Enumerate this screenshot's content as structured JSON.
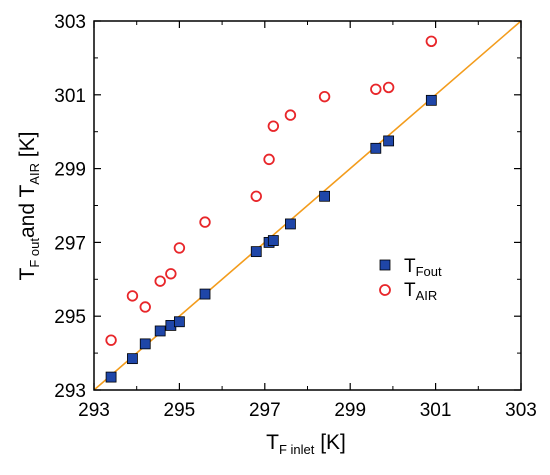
{
  "chart_data": {
    "type": "scatter",
    "xlabel": {
      "main": "T",
      "sub": "F inlet",
      "unit": " [K]"
    },
    "ylabel": {
      "main1": "T",
      "sub1": "F out",
      "mid": "and T",
      "sub2": "AIR",
      "unit": " [K]"
    },
    "xlim": [
      293,
      303
    ],
    "ylim": [
      293,
      303
    ],
    "x_ticks": [
      "293",
      "295",
      "297",
      "299",
      "301",
      "303"
    ],
    "y_ticks": [
      "293",
      "295",
      "297",
      "299",
      "301",
      "303"
    ],
    "legend_position": "middle-right",
    "reference_line": {
      "type": "y=x",
      "color": "#f39c1c"
    },
    "series": [
      {
        "name": {
          "main": "T",
          "sub": "Fout"
        },
        "marker": "filled-square",
        "fill": "#1f46a8",
        "stroke": "#000000",
        "points": [
          [
            293.4,
            293.35
          ],
          [
            293.9,
            293.85
          ],
          [
            294.2,
            294.25
          ],
          [
            294.55,
            294.6
          ],
          [
            294.8,
            294.75
          ],
          [
            295.0,
            294.85
          ],
          [
            295.6,
            295.6
          ],
          [
            296.8,
            296.75
          ],
          [
            297.1,
            297.0
          ],
          [
            297.2,
            297.05
          ],
          [
            297.6,
            297.5
          ],
          [
            298.4,
            298.25
          ],
          [
            299.6,
            299.55
          ],
          [
            299.9,
            299.75
          ],
          [
            300.9,
            300.85
          ]
        ]
      },
      {
        "name": {
          "main": "T",
          "sub": "AIR"
        },
        "marker": "open-circle",
        "fill": "none",
        "stroke": "#e8262a",
        "points": [
          [
            293.4,
            294.35
          ],
          [
            293.9,
            295.55
          ],
          [
            294.2,
            295.25
          ],
          [
            294.55,
            295.95
          ],
          [
            294.8,
            296.15
          ],
          [
            295.0,
            296.85
          ],
          [
            295.6,
            297.55
          ],
          [
            296.8,
            298.25
          ],
          [
            297.1,
            299.25
          ],
          [
            297.2,
            300.15
          ],
          [
            297.6,
            300.45
          ],
          [
            298.4,
            300.95
          ],
          [
            299.6,
            301.15
          ],
          [
            299.9,
            301.2
          ],
          [
            300.9,
            302.45
          ]
        ]
      }
    ]
  }
}
